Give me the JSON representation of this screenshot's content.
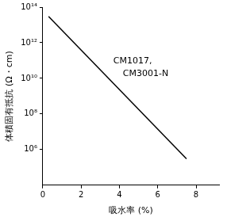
{
  "chart_data": {
    "type": "line",
    "x_label": "吸水率 (%)",
    "y_label": "体積固有抵抗 (Ω・cm)",
    "annotation": [
      "CM1017,",
      "CM3001-N"
    ],
    "x": [
      0.3,
      7.5
    ],
    "values": [
      30000000000000.0,
      300000.0
    ],
    "color": "#000000",
    "log": "y",
    "grid": false,
    "xlim": [
      0,
      9.2
    ],
    "xticks": [
      0,
      2,
      4,
      6,
      8
    ],
    "ylim": [
      10000,
      100000000000000.0
    ],
    "yticks": [
      {
        "value": 1000000.0,
        "label": "10⁶"
      },
      {
        "value": 100000000.0,
        "label": "10⁸"
      },
      {
        "value": 10000000000.0,
        "label": "10¹⁰"
      },
      {
        "value": 1000000000000.0,
        "label": "10¹²"
      },
      {
        "value": 100000000000000.0,
        "label": "10¹⁴"
      }
    ]
  }
}
